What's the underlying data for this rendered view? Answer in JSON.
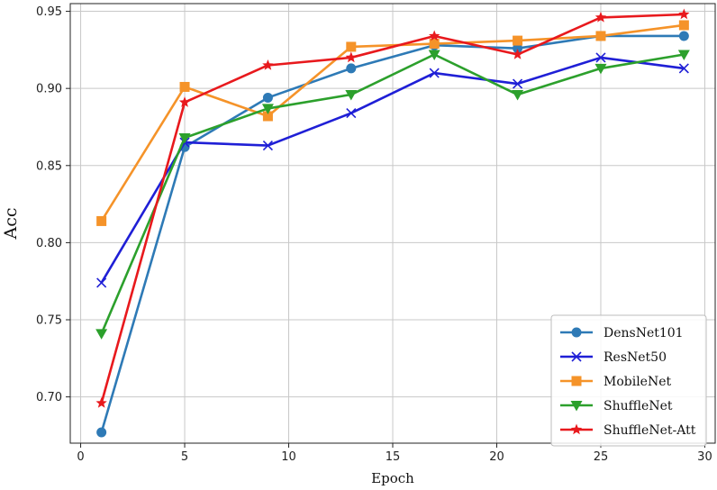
{
  "chart_data": {
    "type": "line",
    "title": "",
    "xlabel": "Epoch",
    "ylabel": "Acc",
    "xlim": [
      -0.5,
      30.5
    ],
    "ylim": [
      0.67,
      0.955
    ],
    "xticks": [
      0,
      5,
      10,
      15,
      20,
      25,
      30
    ],
    "yticks": [
      0.7,
      0.75,
      0.8,
      0.85,
      0.9,
      0.95
    ],
    "grid": true,
    "legend_position": "lower-right",
    "x": [
      1,
      5,
      9,
      13,
      17,
      21,
      25,
      29
    ],
    "series": [
      {
        "name": "DensNet101",
        "color": "#2e7ab6",
        "marker": "circle",
        "values": [
          0.677,
          0.862,
          0.894,
          0.913,
          0.928,
          0.926,
          0.934,
          0.934
        ]
      },
      {
        "name": "ResNet50",
        "color": "#1f1fd6",
        "marker": "x",
        "values": [
          0.774,
          0.865,
          0.863,
          0.884,
          0.91,
          0.903,
          0.92,
          0.913
        ]
      },
      {
        "name": "MobileNet",
        "color": "#f59329",
        "marker": "square",
        "values": [
          0.814,
          0.901,
          0.882,
          0.927,
          0.929,
          0.931,
          0.934,
          0.941
        ]
      },
      {
        "name": "ShuffleNet",
        "color": "#2ca02c",
        "marker": "triangle-down",
        "values": [
          0.741,
          0.868,
          0.887,
          0.896,
          0.922,
          0.896,
          0.913,
          0.922
        ]
      },
      {
        "name": "ShuffleNet-Att",
        "color": "#e8191d",
        "marker": "star",
        "values": [
          0.696,
          0.891,
          0.915,
          0.92,
          0.934,
          0.922,
          0.946,
          0.948
        ]
      }
    ]
  }
}
